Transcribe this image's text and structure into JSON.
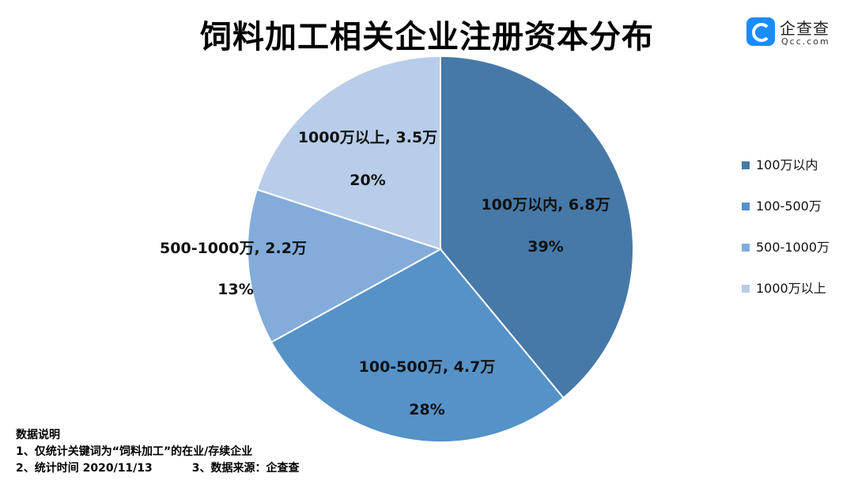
{
  "title": "饲料加工相关企业注册资本分布",
  "logo": {
    "text_cn": "企查查",
    "text_en": "Qcc.com"
  },
  "colors": {
    "slice1": "#4679a8",
    "slice2": "#5592c8",
    "slice3": "#83acdb",
    "slice4": "#b8cde9"
  },
  "chart_data": {
    "type": "pie",
    "title": "饲料加工相关企业注册资本分布",
    "slices": [
      {
        "label": "100万以内",
        "count": "6.8万",
        "value": 39,
        "percent_label": "39%"
      },
      {
        "label": "100-500万",
        "count": "4.7万",
        "value": 28,
        "percent_label": "28%"
      },
      {
        "label": "500-1000万",
        "count": "2.2万",
        "value": 13,
        "percent_label": "13%"
      },
      {
        "label": "1000万以上",
        "count": "3.5万",
        "value": 20,
        "percent_label": "20%"
      }
    ],
    "data_labels": [
      "100万以内, 6.8万",
      "100-500万, 4.7万",
      "500-1000万, 2.2万",
      "1000万以上, 3.5万"
    ],
    "legend": [
      "100万以内",
      "100-500万",
      "500-1000万",
      "1000万以上"
    ],
    "legend_position": "right"
  },
  "notes": {
    "heading": "数据说明",
    "line1": "1、仅统计关键词为“饲料加工”的在业/存续企业",
    "line2a": "2、统计时间  2020/11/13",
    "line2b": "3、数据来源：企查查"
  }
}
